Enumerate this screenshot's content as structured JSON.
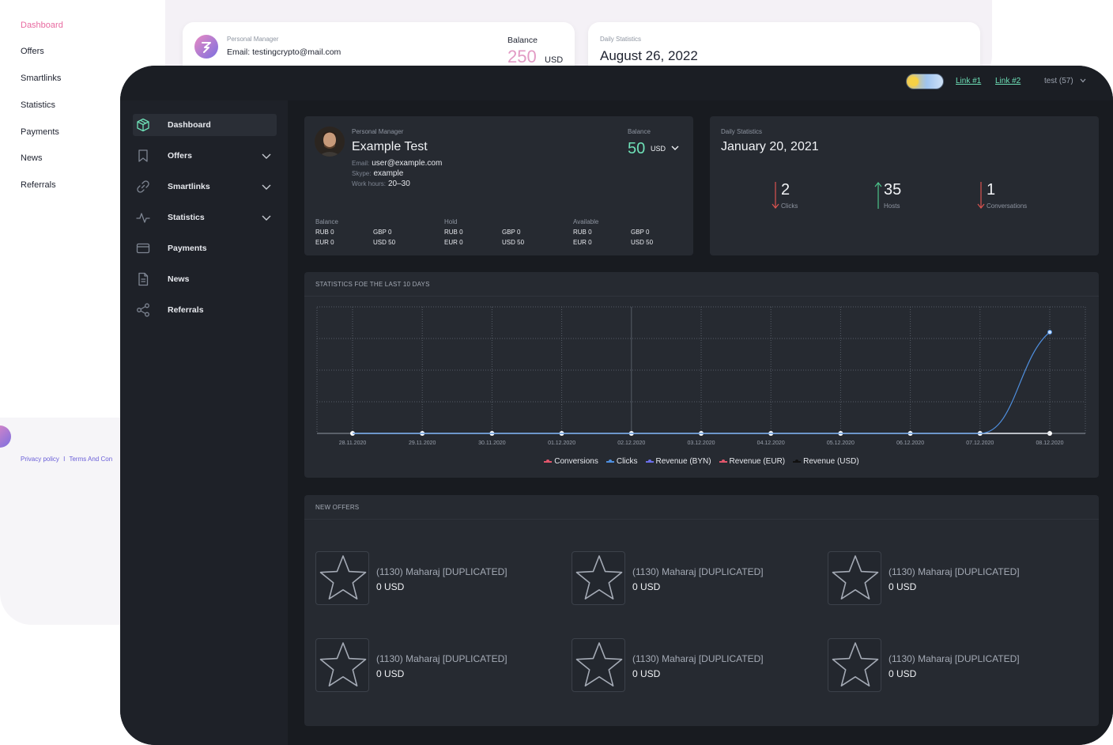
{
  "background_app": {
    "nav": [
      "Dashboard",
      "Offers",
      "Smartlinks",
      "Statistics",
      "Payments",
      "News",
      "Referrals"
    ],
    "manager_label": "Personal Manager",
    "manager_email": "Email: testingcrypto@mail.com",
    "balance_label": "Balance",
    "balance_value": "250",
    "balance_currency": "USD",
    "daily_label": "Daily Statistics",
    "daily_date": "August 26, 2022",
    "footer_privacy": "Privacy policy",
    "footer_sep": "I",
    "footer_terms": "Terms And Con"
  },
  "topbar": {
    "link1": "Link #1",
    "link2": "Link #2",
    "user": "test (57)"
  },
  "sidebar": {
    "items": [
      {
        "label": "Dashboard",
        "icon": "cube-icon",
        "active": true,
        "expandable": false
      },
      {
        "label": "Offers",
        "icon": "bookmark-icon",
        "active": false,
        "expandable": true
      },
      {
        "label": "Smartlinks",
        "icon": "link-icon",
        "active": false,
        "expandable": true
      },
      {
        "label": "Statistics",
        "icon": "pulse-icon",
        "active": false,
        "expandable": true
      },
      {
        "label": "Payments",
        "icon": "card-icon",
        "active": false,
        "expandable": false
      },
      {
        "label": "News",
        "icon": "document-icon",
        "active": false,
        "expandable": false
      },
      {
        "label": "Referrals",
        "icon": "share-icon",
        "active": false,
        "expandable": false
      }
    ]
  },
  "manager": {
    "label": "Personal Manager",
    "name": "Example Test",
    "email_key": "Email:",
    "email": "user@example.com",
    "skype_key": "Skype:",
    "skype": "example",
    "hours_key": "Work hours:",
    "hours": "20–30",
    "balance_label": "Balance",
    "balance_value": "50",
    "balance_currency": "USD",
    "columns": [
      {
        "title": "Balance",
        "rows": [
          [
            "RUB 0",
            "GBP 0"
          ],
          [
            "EUR 0",
            "USD 50"
          ]
        ]
      },
      {
        "title": "Hold",
        "rows": [
          [
            "RUB 0",
            "GBP 0"
          ],
          [
            "EUR 0",
            "USD 50"
          ]
        ]
      },
      {
        "title": "Available",
        "rows": [
          [
            "RUB 0",
            "GBP 0"
          ],
          [
            "EUR 0",
            "USD 50"
          ]
        ]
      }
    ]
  },
  "daily": {
    "label": "Daily Statistics",
    "date": "January 20, 2021",
    "metrics": [
      {
        "value": "2",
        "caption": "Clicks",
        "trend": "down"
      },
      {
        "value": "35",
        "caption": "Hosts",
        "trend": "up"
      },
      {
        "value": "1",
        "caption": "Conversations",
        "trend": "down"
      }
    ]
  },
  "chart_section": {
    "title": "STATISTICS FOE THE LAST 10 DAYS"
  },
  "chart_data": {
    "type": "line",
    "x": [
      "28.11.2020",
      "29.11.2020",
      "30.11.2020",
      "01.12.2020",
      "02.12.2020",
      "03.12.2020",
      "04.12.2020",
      "05.12.2020",
      "06.12.2020",
      "07.12.2020",
      "08.12.2020"
    ],
    "series": [
      {
        "name": "Conversions",
        "color": "#e0566b",
        "values": [
          0,
          0,
          0,
          0,
          0,
          0,
          0,
          0,
          0,
          0,
          0
        ]
      },
      {
        "name": "Clicks",
        "color": "#4f8fde",
        "values": [
          0,
          0,
          0,
          0,
          0,
          0,
          0,
          0,
          0,
          0,
          3.2
        ]
      },
      {
        "name": "Revenue (BYN)",
        "color": "#6b6fe8",
        "values": [
          0,
          0,
          0,
          0,
          0,
          0,
          0,
          0,
          0,
          0,
          0
        ]
      },
      {
        "name": "Revenue (EUR)",
        "color": "#e0566b",
        "values": [
          0,
          0,
          0,
          0,
          0,
          0,
          0,
          0,
          0,
          0,
          0
        ]
      },
      {
        "name": "Revenue (USD)",
        "color": "#111111",
        "values": [
          0,
          0,
          0,
          0,
          0,
          0,
          0,
          0,
          0,
          0,
          0
        ]
      }
    ],
    "ylim": [
      0,
      4
    ],
    "grid": true,
    "legend": "bottom-center"
  },
  "offers_section": {
    "title": "NEW OFFERS",
    "items": [
      {
        "title": "(1130) Maharaj [DUPLICATED]",
        "price": "0 USD"
      },
      {
        "title": "(1130) Maharaj [DUPLICATED]",
        "price": "0 USD"
      },
      {
        "title": "(1130) Maharaj [DUPLICATED]",
        "price": "0 USD"
      },
      {
        "title": "(1130) Maharaj [DUPLICATED]",
        "price": "0 USD"
      },
      {
        "title": "(1130) Maharaj [DUPLICATED]",
        "price": "0 USD"
      },
      {
        "title": "(1130) Maharaj [DUPLICATED]",
        "price": "0 USD"
      }
    ]
  }
}
